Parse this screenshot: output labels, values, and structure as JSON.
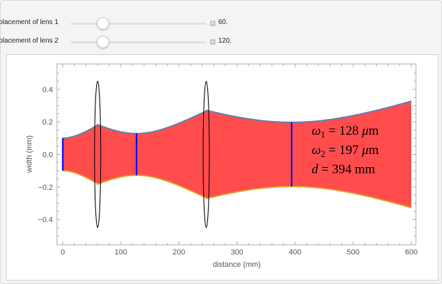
{
  "controls": [
    {
      "label": "placement of lens 1",
      "value": "60.",
      "fraction": 0.23
    },
    {
      "label": "placement of lens 2",
      "value": "120.",
      "fraction": 0.23
    }
  ],
  "chart_data": {
    "type": "area",
    "xlabel": "distance (mm)",
    "ylabel": "width (mm)",
    "xlim": [
      -10,
      608
    ],
    "ylim": [
      -0.556,
      0.556
    ],
    "xticks": [
      0,
      100,
      200,
      300,
      400,
      500,
      600
    ],
    "yticks": [
      -0.4,
      -0.2,
      0.0,
      0.2,
      0.4
    ],
    "ytick_labels": [
      "−0.4",
      "−0.2",
      "0.0",
      "0.2",
      "0.4"
    ],
    "lens_positions": [
      60,
      247
    ],
    "lens_half_height": 0.45,
    "waists": [
      {
        "z": 0,
        "w": 0.1
      },
      {
        "z": 127,
        "w": 0.128
      },
      {
        "z": 394,
        "w": 0.197
      }
    ],
    "z_end": 600,
    "colors": {
      "fill": "#ff4c4c",
      "upper": "#5e81b5",
      "lower": "#e19c24",
      "waist": "#0000ff",
      "lens": "#000000"
    },
    "annotations": [
      {
        "sym": "ω",
        "sub": "1",
        "text": "= 128",
        "unit": "μm"
      },
      {
        "sym": "ω",
        "sub": "2",
        "text": "= 197",
        "unit": "μm"
      },
      {
        "sym": "d",
        "sub": "",
        "text": " = 394",
        "unit": "mm"
      }
    ]
  }
}
